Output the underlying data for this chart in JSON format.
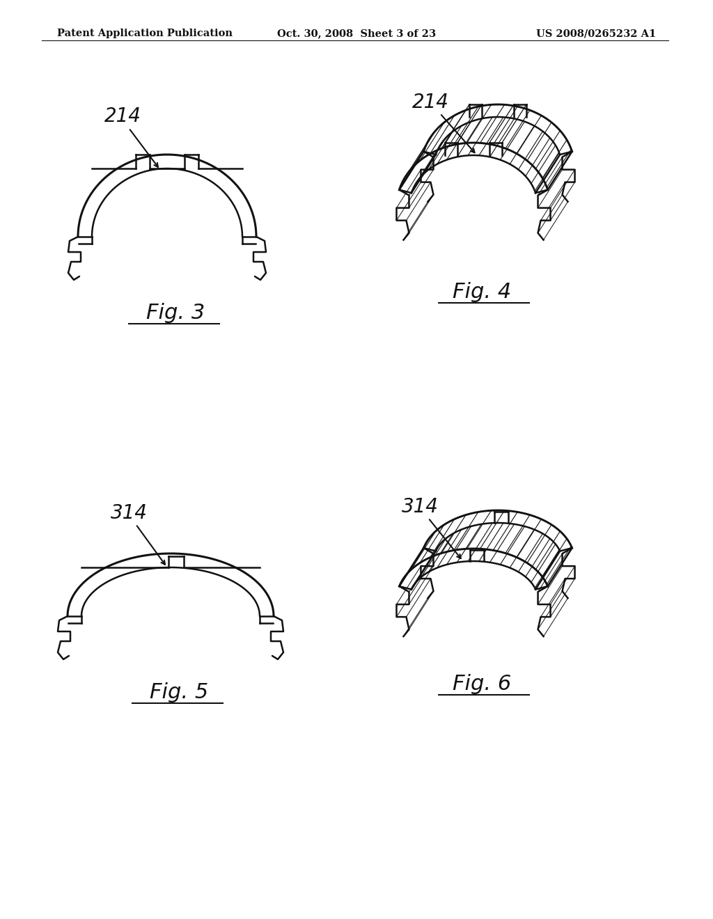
{
  "background_color": "#ffffff",
  "header_left": "Patent Application Publication",
  "header_center": "Oct. 30, 2008  Sheet 3 of 23",
  "header_right": "US 2008/0265232 A1",
  "header_fontsize": 10.5,
  "line_color": "#111111",
  "line_width": 1.8,
  "fig3_label": "214",
  "fig4_label": "214",
  "fig5_label": "314",
  "fig6_label": "314",
  "fig3_caption": "Fig. 3",
  "fig4_caption": "Fig. 4",
  "fig5_caption": "Fig. 5",
  "fig6_caption": "Fig. 6"
}
